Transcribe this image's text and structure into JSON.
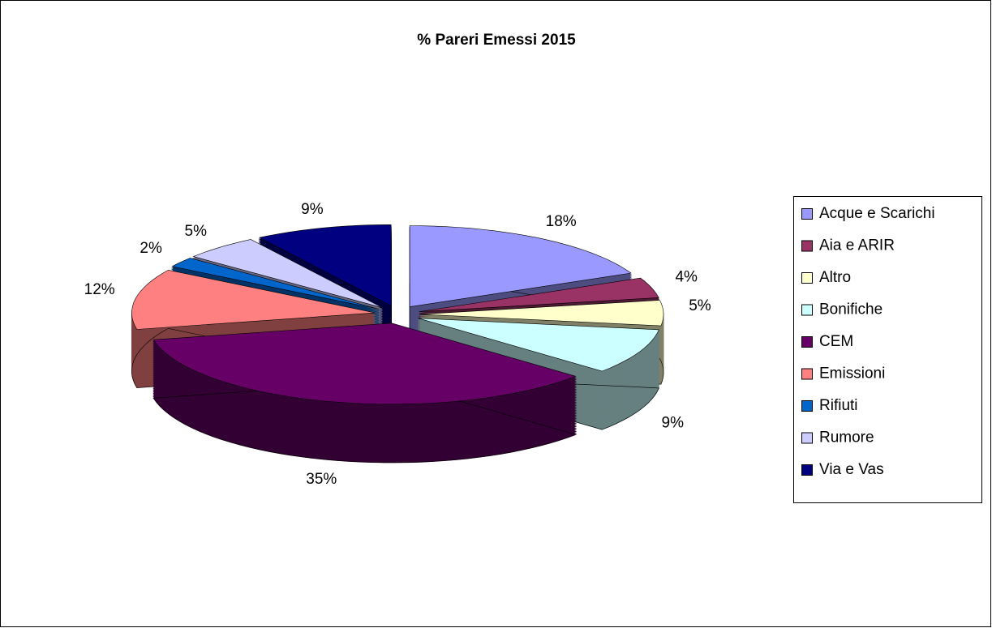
{
  "chart_data": {
    "type": "pie",
    "title": "% Pareri Emessi 2015",
    "categories": [
      "Acque e Scarichi",
      "Aia e ARIR",
      "Altro",
      "Bonifiche",
      "CEM",
      "Emissioni",
      "Rifiuti",
      "Rumore",
      "Via e Vas"
    ],
    "values": [
      18,
      4,
      5,
      9,
      35,
      12,
      2,
      5,
      9
    ],
    "value_labels": [
      "18%",
      "4%",
      "5%",
      "9%",
      "35%",
      "12%",
      "2%",
      "5%",
      "9%"
    ],
    "colors": [
      "#9999ff",
      "#993366",
      "#ffffcc",
      "#ccffff",
      "#660066",
      "#ff8080",
      "#0066cc",
      "#ccccff",
      "#000080"
    ],
    "legend": "right"
  }
}
